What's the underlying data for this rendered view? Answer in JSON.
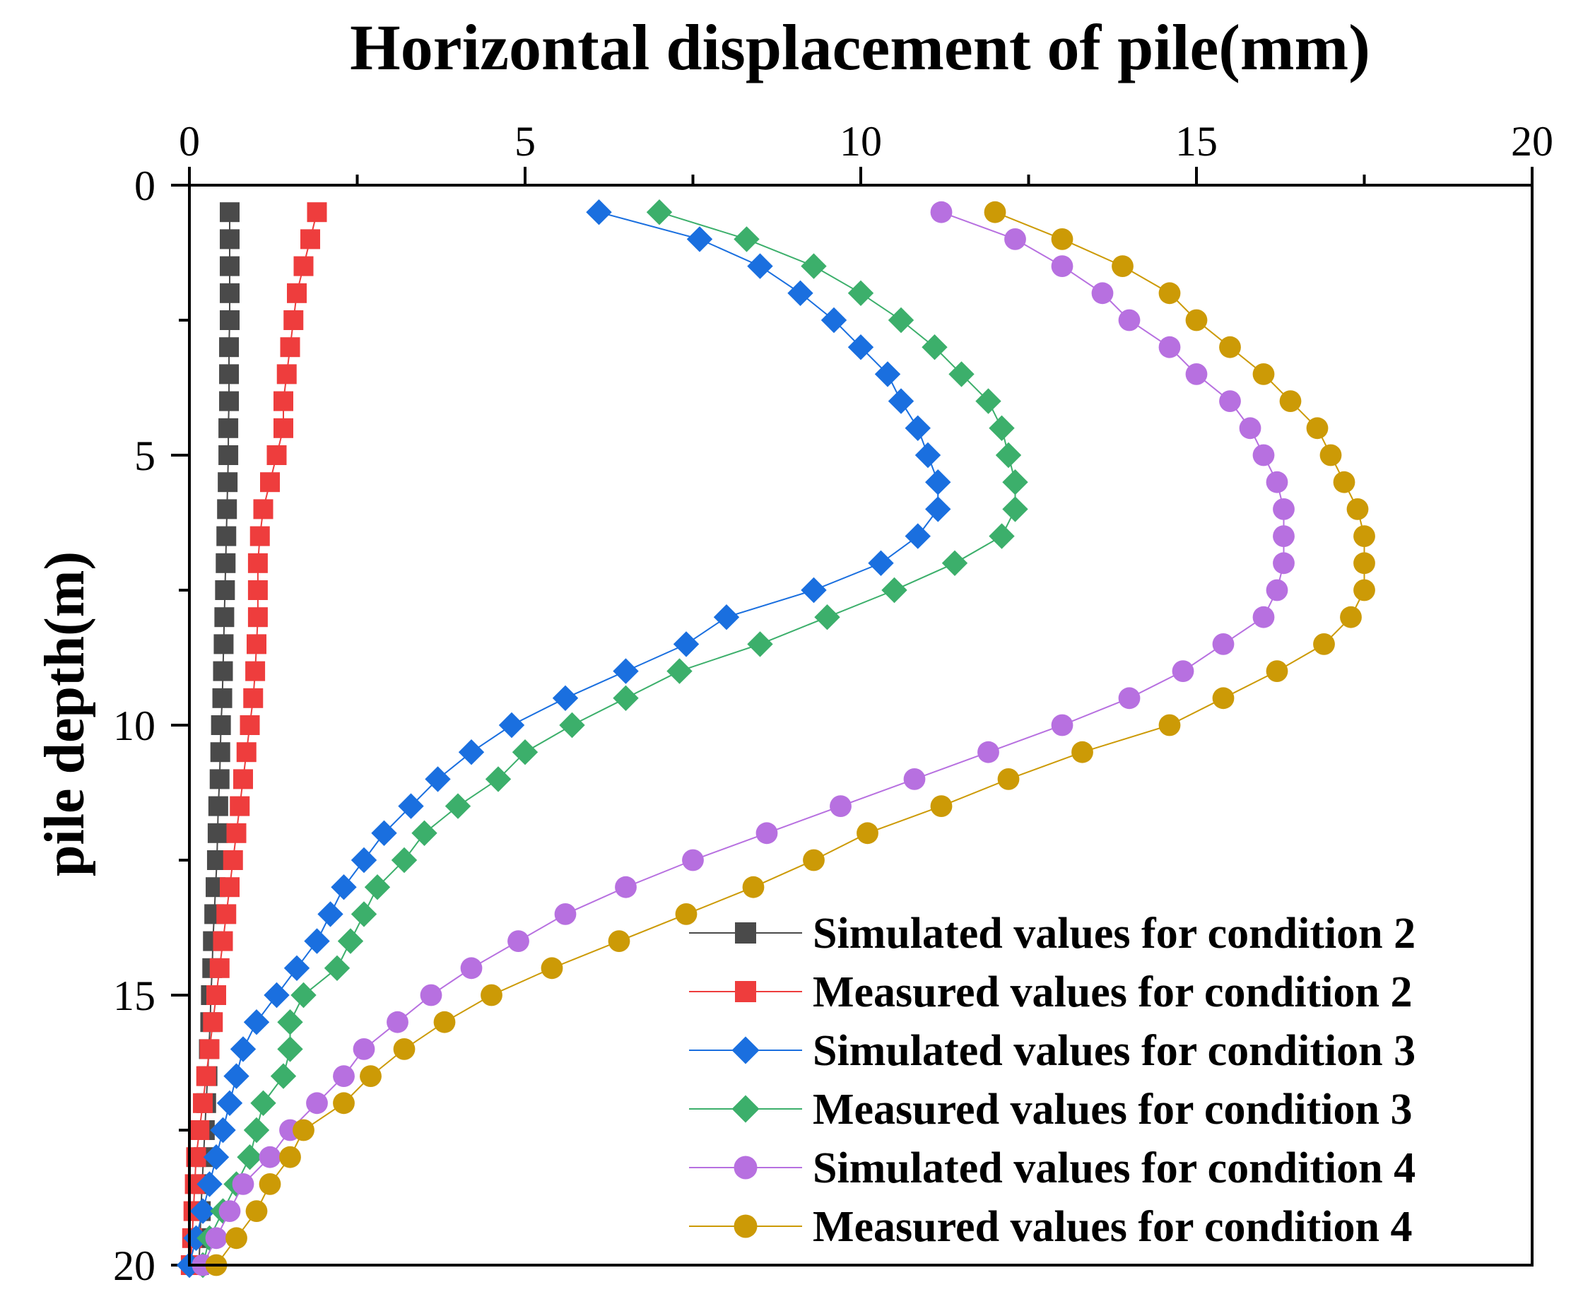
{
  "chart_data": {
    "type": "line",
    "title": "Horizontal displacement of pile(mm)",
    "xlabel": "Horizontal displacement of pile(mm)",
    "ylabel": "pile depth(m)",
    "xlim": [
      0,
      20
    ],
    "ylim": [
      20,
      0
    ],
    "x_axis_position": "top",
    "y_inverted": true,
    "x_ticks": [
      "0",
      "5",
      "10",
      "15",
      "20"
    ],
    "y_ticks": [
      "0",
      "5",
      "10",
      "15",
      "20"
    ],
    "x_minor_step": 2.5,
    "y_minor_step": 2.5,
    "grid": false,
    "legend_position": "bottom-right",
    "depths": [
      0.5,
      1,
      1.5,
      2,
      2.5,
      3,
      3.5,
      4,
      4.5,
      5,
      5.5,
      6,
      6.5,
      7,
      7.5,
      8,
      8.5,
      9,
      9.5,
      10,
      10.5,
      11,
      11.5,
      12,
      12.5,
      13,
      13.5,
      14,
      14.5,
      15,
      15.5,
      16,
      16.5,
      17,
      17.5,
      18,
      18.5,
      19,
      19.5,
      20
    ],
    "series": [
      {
        "name": "Simulated values for condition 2",
        "color": "#4a4a4a",
        "marker": "square",
        "x": [
          0.6,
          0.6,
          0.6,
          0.6,
          0.6,
          0.59,
          0.59,
          0.59,
          0.58,
          0.58,
          0.57,
          0.56,
          0.55,
          0.54,
          0.53,
          0.52,
          0.51,
          0.5,
          0.49,
          0.47,
          0.46,
          0.45,
          0.43,
          0.42,
          0.41,
          0.39,
          0.37,
          0.35,
          0.34,
          0.32,
          0.31,
          0.29,
          0.27,
          0.25,
          0.23,
          0.21,
          0.19,
          0.17,
          0.16,
          0.14
        ]
      },
      {
        "name": "Measured values for condition 2",
        "color": "#ee3d3d",
        "marker": "square",
        "x": [
          1.9,
          1.8,
          1.7,
          1.6,
          1.55,
          1.5,
          1.45,
          1.4,
          1.4,
          1.3,
          1.2,
          1.1,
          1.05,
          1.02,
          1.02,
          1.02,
          1.0,
          0.98,
          0.95,
          0.9,
          0.85,
          0.8,
          0.75,
          0.7,
          0.65,
          0.6,
          0.55,
          0.5,
          0.45,
          0.4,
          0.35,
          0.3,
          0.25,
          0.2,
          0.15,
          0.1,
          0.08,
          0.06,
          0.04,
          0.02
        ]
      },
      {
        "name": "Simulated values for condition 3",
        "color": "#1a6fdf",
        "marker": "diamond",
        "x": [
          6.1,
          7.6,
          8.5,
          9.1,
          9.6,
          10.0,
          10.4,
          10.6,
          10.85,
          11.0,
          11.15,
          11.15,
          10.85,
          10.3,
          9.3,
          8.0,
          7.4,
          6.5,
          5.6,
          4.8,
          4.2,
          3.7,
          3.3,
          2.9,
          2.6,
          2.3,
          2.1,
          1.9,
          1.6,
          1.3,
          1.0,
          0.8,
          0.7,
          0.6,
          0.5,
          0.4,
          0.3,
          0.2,
          0.1,
          0.0
        ]
      },
      {
        "name": "Measured values for condition 3",
        "color": "#3caf6b",
        "marker": "diamond",
        "x": [
          7.0,
          8.3,
          9.3,
          10.0,
          10.6,
          11.1,
          11.5,
          11.9,
          12.1,
          12.2,
          12.3,
          12.3,
          12.1,
          11.4,
          10.5,
          9.5,
          8.5,
          7.3,
          6.5,
          5.7,
          5.0,
          4.6,
          4.0,
          3.5,
          3.2,
          2.8,
          2.6,
          2.4,
          2.2,
          1.7,
          1.5,
          1.5,
          1.4,
          1.1,
          1.0,
          0.9,
          0.7,
          0.5,
          0.3,
          0.2
        ]
      },
      {
        "name": "Simulated values for condition 4",
        "color": "#b770e0",
        "marker": "circle",
        "x": [
          11.2,
          12.3,
          13.0,
          13.6,
          14.0,
          14.6,
          15.0,
          15.5,
          15.8,
          16.0,
          16.2,
          16.3,
          16.3,
          16.3,
          16.2,
          16.0,
          15.4,
          14.8,
          14.0,
          13.0,
          11.9,
          10.8,
          9.7,
          8.6,
          7.5,
          6.5,
          5.6,
          4.9,
          4.2,
          3.6,
          3.1,
          2.6,
          2.3,
          1.9,
          1.5,
          1.2,
          0.8,
          0.6,
          0.4,
          0.2
        ]
      },
      {
        "name": "Measured values for condition 4",
        "color": "#cc9a06",
        "marker": "circle",
        "x": [
          12.0,
          13.0,
          13.9,
          14.6,
          15.0,
          15.5,
          16.0,
          16.4,
          16.8,
          17.0,
          17.2,
          17.4,
          17.5,
          17.5,
          17.5,
          17.3,
          16.9,
          16.2,
          15.4,
          14.6,
          13.3,
          12.2,
          11.2,
          10.1,
          9.3,
          8.4,
          7.4,
          6.4,
          5.4,
          4.5,
          3.8,
          3.2,
          2.7,
          2.3,
          1.7,
          1.5,
          1.2,
          1.0,
          0.7,
          0.4
        ]
      }
    ]
  }
}
